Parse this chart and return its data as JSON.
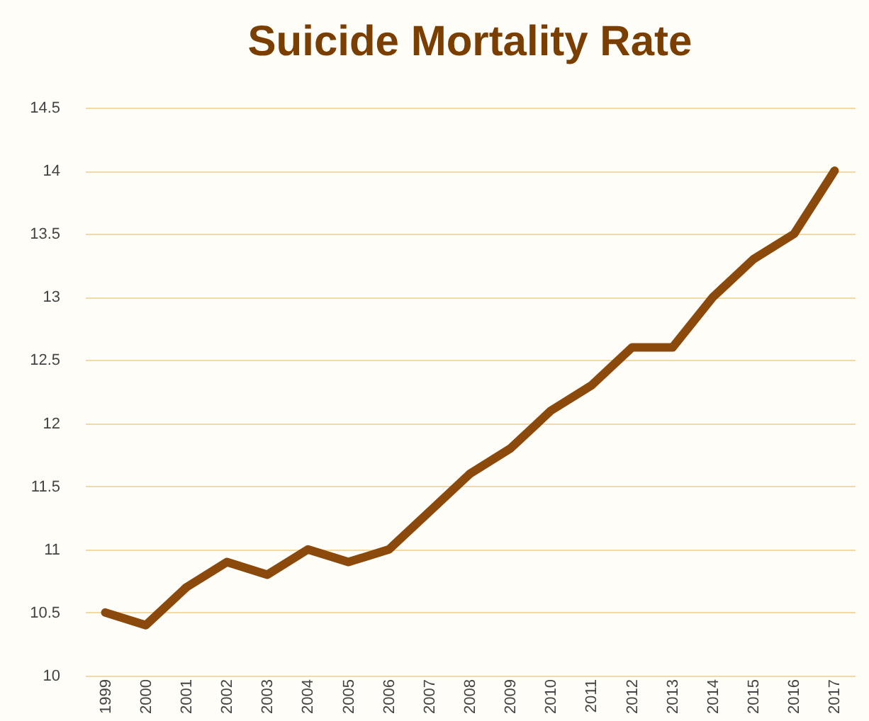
{
  "chart_data": {
    "type": "line",
    "title": "Suicide Mortality Rate",
    "categories": [
      "1999",
      "2000",
      "2001",
      "2002",
      "2003",
      "2004",
      "2005",
      "2006",
      "2007",
      "2008",
      "2009",
      "2010",
      "2011",
      "2012",
      "2013",
      "2014",
      "2015",
      "2016",
      "2017"
    ],
    "series": [
      {
        "color": "#8b4a0c",
        "values": [
          10.5,
          10.4,
          10.7,
          10.9,
          10.8,
          11.0,
          10.9,
          11.0,
          11.3,
          11.6,
          11.8,
          12.1,
          12.3,
          12.6,
          12.6,
          13.0,
          13.3,
          13.5,
          14.0
        ]
      }
    ],
    "ylim": [
      10,
      14.5
    ],
    "yticks": [
      10,
      10.5,
      11,
      11.5,
      12,
      12.5,
      13,
      13.5,
      14,
      14.5
    ],
    "grid": "y",
    "legend": false,
    "marker": "none",
    "line_style": "solid"
  }
}
